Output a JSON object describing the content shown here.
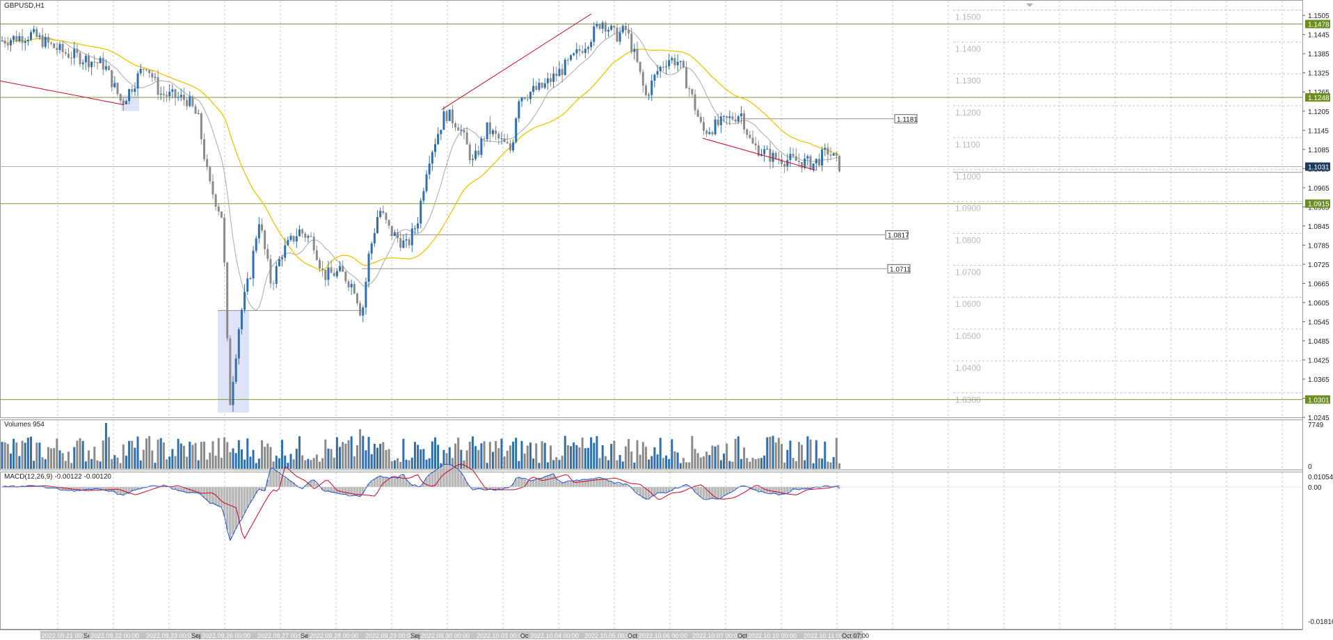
{
  "window": {
    "title": "GBPUSD,H1"
  },
  "volumes_panel": {
    "label": "Volumes 954",
    "scale_top": "7749",
    "scale_bottom": "0"
  },
  "macd_panel": {
    "label": "MACD(12,26,9) -0.00122 -0.00120",
    "scale_top": "0.01054",
    "scale_zero": "0.00",
    "scale_bottom": "-0.01816"
  },
  "price_axis": {
    "labels": [
      "1.1505",
      "1.1445",
      "1.1385",
      "1.1325",
      "1.1265",
      "1.1205",
      "1.1145",
      "1.1085",
      "1.1025",
      "1.0965",
      "1.0905",
      "1.0845",
      "1.0785",
      "1.0725",
      "1.0665",
      "1.0605",
      "1.0545",
      "1.0485",
      "1.0425",
      "1.0365",
      "1.0305",
      "1.0245"
    ],
    "tags": [
      {
        "text": "1.1478",
        "kind": "level"
      },
      {
        "text": "1.1248",
        "kind": "level"
      },
      {
        "text": "1.1031",
        "kind": "bid"
      },
      {
        "text": "1.0915",
        "kind": "level"
      },
      {
        "text": "1.0301",
        "kind": "level"
      }
    ]
  },
  "grid_labels": [
    "1.1500",
    "1.1400",
    "1.1300",
    "1.1200",
    "1.1100",
    "1.1000",
    "1.0900",
    "1.0800",
    "1.0700",
    "1.0600",
    "1.0500",
    "1.0400",
    "1.0300"
  ],
  "line_tags": [
    "1.1181",
    "1.0817",
    "1.0711"
  ],
  "time_axis": {
    "labels": [
      "2022.09.21 00:00",
      "Sep",
      "2022.09.22 00:00",
      "2022.09.23 00:00",
      "Sep",
      "2022.09.26 00:00",
      "2022.09.27 00:00",
      "Sep",
      "2022.09.28 00:00",
      "2022.09.29 00:00",
      "Sep",
      "2022.09.30 00:00",
      "2022.10.03 00:00",
      "Oct",
      "2022.10.04 00:00",
      "2022.10.05 00:00",
      "Oct",
      "2022.10.06 00:00",
      "2022.10.07 00:00",
      "Oct",
      "2022.10.10 00:00",
      "2022.10.11 00:00",
      "Oct 07:00"
    ]
  },
  "colors": {
    "bull": "#2f6fb0",
    "bear": "#8a8a8a",
    "ma_fast": "#a8a8a8",
    "ma_slow": "#f0c400",
    "level_line": "#7a9a3a",
    "trend_line": "#d0021b",
    "signal_line": "#d0021b",
    "macd_line": "#2050d0"
  },
  "chart_data": {
    "type": "candlestick",
    "symbol": "GBPUSD",
    "timeframe": "H1",
    "ylim": [
      1.0245,
      1.1525
    ],
    "horizontal_levels": [
      1.1478,
      1.1248,
      1.0915,
      1.0301
    ],
    "bid": 1.1031,
    "price_path": [
      {
        "x": 0,
        "y": 1.1425
      },
      {
        "x": 45,
        "y": 1.1445
      },
      {
        "x": 90,
        "y": 1.139
      },
      {
        "x": 150,
        "y": 1.135
      },
      {
        "x": 175,
        "y": 1.123
      },
      {
        "x": 200,
        "y": 1.132
      },
      {
        "x": 210,
        "y": 1.1355
      },
      {
        "x": 230,
        "y": 1.126
      },
      {
        "x": 270,
        "y": 1.124
      },
      {
        "x": 285,
        "y": 1.118
      },
      {
        "x": 300,
        "y": 1.098
      },
      {
        "x": 320,
        "y": 1.087
      },
      {
        "x": 330,
        "y": 1.028
      },
      {
        "x": 345,
        "y": 1.056
      },
      {
        "x": 360,
        "y": 1.07
      },
      {
        "x": 372,
        "y": 1.087
      },
      {
        "x": 390,
        "y": 1.066
      },
      {
        "x": 405,
        "y": 1.076
      },
      {
        "x": 430,
        "y": 1.083
      },
      {
        "x": 450,
        "y": 1.08
      },
      {
        "x": 465,
        "y": 1.069
      },
      {
        "x": 490,
        "y": 1.07
      },
      {
        "x": 510,
        "y": 1.065
      },
      {
        "x": 520,
        "y": 1.056
      },
      {
        "x": 530,
        "y": 1.075
      },
      {
        "x": 545,
        "y": 1.09
      },
      {
        "x": 560,
        "y": 1.083
      },
      {
        "x": 585,
        "y": 1.078
      },
      {
        "x": 600,
        "y": 1.086
      },
      {
        "x": 615,
        "y": 1.105
      },
      {
        "x": 640,
        "y": 1.12
      },
      {
        "x": 660,
        "y": 1.116
      },
      {
        "x": 680,
        "y": 1.104
      },
      {
        "x": 700,
        "y": 1.115
      },
      {
        "x": 735,
        "y": 1.108
      },
      {
        "x": 745,
        "y": 1.125
      },
      {
        "x": 780,
        "y": 1.128
      },
      {
        "x": 820,
        "y": 1.136
      },
      {
        "x": 850,
        "y": 1.144
      },
      {
        "x": 865,
        "y": 1.149
      },
      {
        "x": 885,
        "y": 1.144
      },
      {
        "x": 900,
        "y": 1.146
      },
      {
        "x": 915,
        "y": 1.136
      },
      {
        "x": 928,
        "y": 1.125
      },
      {
        "x": 945,
        "y": 1.133
      },
      {
        "x": 960,
        "y": 1.137
      },
      {
        "x": 975,
        "y": 1.136
      },
      {
        "x": 990,
        "y": 1.128
      },
      {
        "x": 1010,
        "y": 1.114
      },
      {
        "x": 1040,
        "y": 1.117
      },
      {
        "x": 1065,
        "y": 1.12
      },
      {
        "x": 1080,
        "y": 1.11
      },
      {
        "x": 1110,
        "y": 1.106
      },
      {
        "x": 1140,
        "y": 1.105
      },
      {
        "x": 1170,
        "y": 1.104
      },
      {
        "x": 1190,
        "y": 1.108
      },
      {
        "x": 1208,
        "y": 1.103
      }
    ]
  }
}
